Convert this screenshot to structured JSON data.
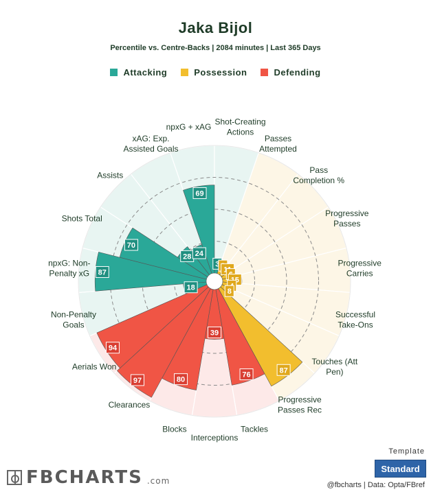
{
  "header": {
    "title": "Jaka Bijol",
    "subtitle": "Percentile vs. Centre-Backs | 2084 minutes | Last 365 Days"
  },
  "legend": [
    {
      "label": "Attacking",
      "color": "#2aa898"
    },
    {
      "label": "Possession",
      "color": "#f2be2e"
    },
    {
      "label": "Defending",
      "color": "#f05545"
    }
  ],
  "chart_data": {
    "type": "radar",
    "scale_max": 100,
    "rings": [
      25,
      50,
      75
    ],
    "category_colors": {
      "Attacking": {
        "fill": "#2aa898",
        "bg": "#e8f5f2",
        "box": "#1f8f80"
      },
      "Possession": {
        "fill": "#f2be2e",
        "bg": "#fdf6e6",
        "box": "#e0a81d"
      },
      "Defending": {
        "fill": "#f05545",
        "bg": "#fde9e8",
        "box": "#d93f33"
      }
    },
    "metrics": [
      {
        "label": "npxG + xAG",
        "value": 69,
        "category": "Attacking"
      },
      {
        "label": "Shot-Creating Actions",
        "value": 3,
        "category": "Attacking"
      },
      {
        "label": "Passes Attempted",
        "value": 3,
        "category": "Possession"
      },
      {
        "label": "Pass Completion %",
        "value": 11,
        "category": "Possession"
      },
      {
        "label": "Progressive Passes",
        "value": 6,
        "category": "Possession"
      },
      {
        "label": "Progressive Carries",
        "value": 15,
        "category": "Possession"
      },
      {
        "label": "Successful Take-Ons",
        "value": 4,
        "category": "Possession"
      },
      {
        "label": "Touches (Att Pen)",
        "value": 8,
        "category": "Possession"
      },
      {
        "label": "Progressive Passes Rec",
        "value": 87,
        "category": "Possession"
      },
      {
        "label": "Tackles",
        "value": 76,
        "category": "Defending"
      },
      {
        "label": "Interceptions",
        "value": 39,
        "category": "Defending"
      },
      {
        "label": "Blocks",
        "value": 80,
        "category": "Defending"
      },
      {
        "label": "Clearances",
        "value": 97,
        "category": "Defending"
      },
      {
        "label": "Aerials Won",
        "value": 94,
        "category": "Defending"
      },
      {
        "label": "Non-Penalty Goals",
        "value": 18,
        "category": "Attacking"
      },
      {
        "label": "npxG: Non-Penalty xG",
        "value": 87,
        "category": "Attacking"
      },
      {
        "label": "Shots Total",
        "value": 70,
        "category": "Attacking"
      },
      {
        "label": "Assists",
        "value": 28,
        "category": "Attacking"
      },
      {
        "label": "xAG: Exp. Assisted Goals",
        "value": 24,
        "category": "Attacking"
      }
    ],
    "metric_label_lines": [
      [
        "npxG + xAG"
      ],
      [
        "Shot-Creating",
        "Actions"
      ],
      [
        "Passes",
        "Attempted"
      ],
      [
        "Pass",
        "Completion %"
      ],
      [
        "Progressive",
        "Passes"
      ],
      [
        "Progressive",
        "Carries"
      ],
      [
        "Successful",
        "Take-Ons"
      ],
      [
        "Touches (Att",
        "Pen)"
      ],
      [
        "Progressive",
        "Passes Rec"
      ],
      [
        "Tackles"
      ],
      [
        "Interceptions"
      ],
      [
        "Blocks"
      ],
      [
        "Clearances"
      ],
      [
        "Aerials Won"
      ],
      [
        "Non-Penalty",
        "Goals"
      ],
      [
        "npxG: Non-",
        "Penalty xG"
      ],
      [
        "Shots Total"
      ],
      [
        "Assists"
      ],
      [
        "xAG: Exp.",
        "Assisted Goals"
      ]
    ]
  },
  "footer": {
    "brand_name": "FBCHARTS",
    "brand_suffix": ".com",
    "template_label": "Template",
    "template_button": "Standard",
    "credit": "@fbcharts | Data: Opta/FBref"
  }
}
